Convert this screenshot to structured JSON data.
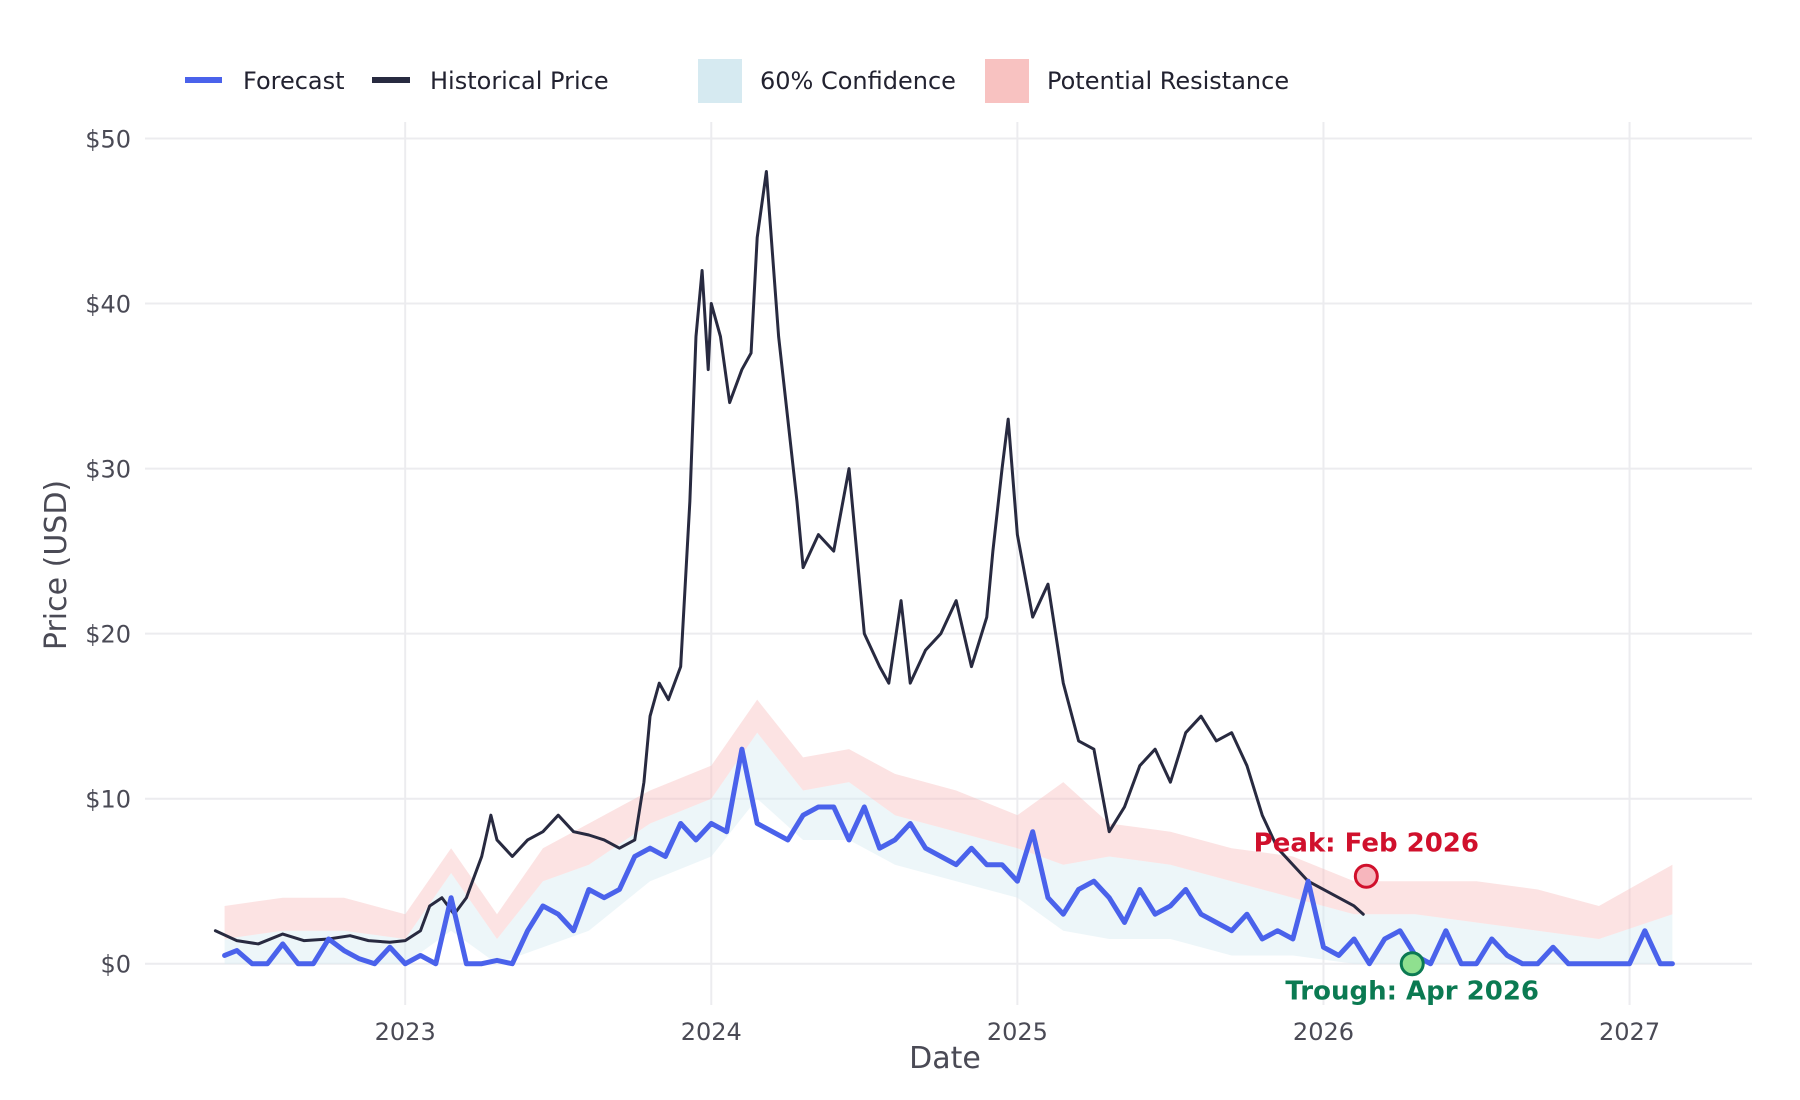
{
  "chart_data": {
    "type": "line",
    "title": "",
    "xlabel": "Date",
    "ylabel": "Price (USD)",
    "xlim": [
      2022.15,
      2027.4
    ],
    "ylim": [
      -2.5,
      51
    ],
    "x_ticks": [
      2023,
      2024,
      2025,
      2026,
      2027
    ],
    "x_tick_labels": [
      "2023",
      "2024",
      "2025",
      "2026",
      "2027"
    ],
    "y_ticks": [
      0,
      10,
      20,
      30,
      40,
      50
    ],
    "y_tick_labels": [
      "$0",
      "$10",
      "$20",
      "$30",
      "$40",
      "$50"
    ],
    "grid": true,
    "legend": {
      "placement": "top",
      "entries": [
        {
          "label": "Forecast",
          "kind": "line",
          "color": "#4a62eb"
        },
        {
          "label": "Historical Price",
          "kind": "line",
          "color": "#282a40"
        },
        {
          "label": "60% Confidence",
          "kind": "patch",
          "color": "#d6eaf1"
        },
        {
          "label": "Potential Resistance",
          "kind": "patch",
          "color": "#f8c2c1"
        }
      ]
    },
    "series": [
      {
        "name": "Historical Price",
        "color": "#282a40",
        "x": [
          2022.38,
          2022.45,
          2022.52,
          2022.6,
          2022.67,
          2022.75,
          2022.82,
          2022.88,
          2022.95,
          2023.0,
          2023.05,
          2023.08,
          2023.12,
          2023.16,
          2023.2,
          2023.25,
          2023.28,
          2023.3,
          2023.35,
          2023.4,
          2023.45,
          2023.5,
          2023.55,
          2023.6,
          2023.65,
          2023.7,
          2023.75,
          2023.78,
          2023.8,
          2023.83,
          2023.86,
          2023.9,
          2023.93,
          2023.95,
          2023.97,
          2023.99,
          2024.0,
          2024.03,
          2024.06,
          2024.1,
          2024.13,
          2024.15,
          2024.18,
          2024.22,
          2024.25,
          2024.28,
          2024.3,
          2024.35,
          2024.4,
          2024.45,
          2024.5,
          2024.55,
          2024.58,
          2024.62,
          2024.65,
          2024.7,
          2024.75,
          2024.8,
          2024.85,
          2024.9,
          2024.92,
          2024.95,
          2024.97,
          2025.0,
          2025.05,
          2025.1,
          2025.15,
          2025.2,
          2025.25,
          2025.3,
          2025.35,
          2025.4,
          2025.45,
          2025.5,
          2025.55,
          2025.6,
          2025.65,
          2025.7,
          2025.75,
          2025.8,
          2025.85,
          2025.9,
          2025.95,
          2026.0,
          2026.05,
          2026.1,
          2026.13
        ],
        "y": [
          2.0,
          1.4,
          1.2,
          1.8,
          1.4,
          1.5,
          1.7,
          1.4,
          1.3,
          1.4,
          2.0,
          3.5,
          4.0,
          3.0,
          4.0,
          6.5,
          9.0,
          7.5,
          6.5,
          7.5,
          8.0,
          9.0,
          8.0,
          7.8,
          7.5,
          7.0,
          7.5,
          11.0,
          15.0,
          17.0,
          16.0,
          18.0,
          28.0,
          38.0,
          42.0,
          36.0,
          40.0,
          38.0,
          34.0,
          36.0,
          37.0,
          44.0,
          48.0,
          38.0,
          33.0,
          28.0,
          24.0,
          26.0,
          25.0,
          30.0,
          20.0,
          18.0,
          17.0,
          22.0,
          17.0,
          19.0,
          20.0,
          22.0,
          18.0,
          21.0,
          25.0,
          30.0,
          33.0,
          26.0,
          21.0,
          23.0,
          17.0,
          13.5,
          13.0,
          8.0,
          9.5,
          12.0,
          13.0,
          11.0,
          14.0,
          15.0,
          13.5,
          14.0,
          12.0,
          9.0,
          7.0,
          6.0,
          5.0,
          4.5,
          4.0,
          3.5,
          3.0
        ]
      },
      {
        "name": "Forecast",
        "color": "#4a62eb",
        "x": [
          2022.41,
          2022.45,
          2022.5,
          2022.55,
          2022.6,
          2022.65,
          2022.7,
          2022.75,
          2022.8,
          2022.85,
          2022.9,
          2022.95,
          2023.0,
          2023.05,
          2023.1,
          2023.15,
          2023.2,
          2023.25,
          2023.3,
          2023.35,
          2023.4,
          2023.45,
          2023.5,
          2023.55,
          2023.6,
          2023.65,
          2023.7,
          2023.75,
          2023.8,
          2023.85,
          2023.9,
          2023.95,
          2024.0,
          2024.05,
          2024.1,
          2024.15,
          2024.2,
          2024.25,
          2024.3,
          2024.35,
          2024.4,
          2024.45,
          2024.5,
          2024.55,
          2024.6,
          2024.65,
          2024.7,
          2024.75,
          2024.8,
          2024.85,
          2024.9,
          2024.95,
          2025.0,
          2025.05,
          2025.1,
          2025.15,
          2025.2,
          2025.25,
          2025.3,
          2025.35,
          2025.4,
          2025.45,
          2025.5,
          2025.55,
          2025.6,
          2025.65,
          2025.7,
          2025.75,
          2025.8,
          2025.85,
          2025.9,
          2025.95,
          2026.0,
          2026.05,
          2026.1,
          2026.15,
          2026.2,
          2026.25,
          2026.3,
          2026.35,
          2026.4,
          2026.45,
          2026.5,
          2026.55,
          2026.6,
          2026.65,
          2026.7,
          2026.75,
          2026.8,
          2026.85,
          2026.9,
          2026.95,
          2027.0,
          2027.05,
          2027.1,
          2027.14
        ],
        "y": [
          0.5,
          0.8,
          0.0,
          0.0,
          1.2,
          0.0,
          0.0,
          1.5,
          0.8,
          0.3,
          0.0,
          1.0,
          0.0,
          0.5,
          0.0,
          4.0,
          0.0,
          0.0,
          0.2,
          0.0,
          2.0,
          3.5,
          3.0,
          2.0,
          4.5,
          4.0,
          4.5,
          6.5,
          7.0,
          6.5,
          8.5,
          7.5,
          8.5,
          8.0,
          13.0,
          8.5,
          8.0,
          7.5,
          9.0,
          9.5,
          9.5,
          7.5,
          9.5,
          7.0,
          7.5,
          8.5,
          7.0,
          6.5,
          6.0,
          7.0,
          6.0,
          6.0,
          5.0,
          8.0,
          4.0,
          3.0,
          4.5,
          5.0,
          4.0,
          2.5,
          4.5,
          3.0,
          3.5,
          4.5,
          3.0,
          2.5,
          2.0,
          3.0,
          1.5,
          2.0,
          1.5,
          5.0,
          1.0,
          0.5,
          1.5,
          0.0,
          1.5,
          2.0,
          0.5,
          0.0,
          2.0,
          0.0,
          0.0,
          1.5,
          0.5,
          0.0,
          0.0,
          1.0,
          0.0,
          0.0,
          0.0,
          0.0,
          0.0,
          2.0,
          0.0,
          0.0
        ]
      }
    ],
    "bands": [
      {
        "name": "60% Confidence",
        "color": "#d6eaf1",
        "x": [
          2022.41,
          2022.6,
          2022.8,
          2023.0,
          2023.15,
          2023.3,
          2023.45,
          2023.6,
          2023.8,
          2024.0,
          2024.15,
          2024.3,
          2024.45,
          2024.6,
          2024.8,
          2025.0,
          2025.15,
          2025.3,
          2025.5,
          2025.7,
          2025.9,
          2026.1,
          2026.3,
          2026.5,
          2026.7,
          2026.9,
          2027.14
        ],
        "y_low": [
          0.0,
          0.0,
          0.0,
          0.0,
          2.0,
          0.0,
          1.0,
          2.0,
          5.0,
          6.5,
          10.0,
          7.5,
          7.5,
          6.0,
          5.0,
          4.0,
          2.0,
          1.5,
          1.5,
          0.5,
          0.5,
          0.0,
          0.0,
          0.0,
          0.0,
          0.0,
          0.0
        ],
        "y_high": [
          1.5,
          2.0,
          2.0,
          1.5,
          5.5,
          1.5,
          5.0,
          6.0,
          8.5,
          10.0,
          14.0,
          10.5,
          11.0,
          9.0,
          8.0,
          7.0,
          6.0,
          6.5,
          6.0,
          5.0,
          4.0,
          3.0,
          3.0,
          2.5,
          2.0,
          1.5,
          3.0
        ]
      },
      {
        "name": "Potential Resistance",
        "color": "#f8c2c1",
        "x": [
          2022.41,
          2022.6,
          2022.8,
          2023.0,
          2023.15,
          2023.3,
          2023.45,
          2023.6,
          2023.8,
          2024.0,
          2024.15,
          2024.3,
          2024.45,
          2024.6,
          2024.8,
          2025.0,
          2025.15,
          2025.3,
          2025.5,
          2025.7,
          2025.9,
          2026.1,
          2026.3,
          2026.5,
          2026.7,
          2026.9,
          2027.14
        ],
        "y_low": [
          1.5,
          2.0,
          2.0,
          1.5,
          5.5,
          1.5,
          5.0,
          6.0,
          8.5,
          10.0,
          14.0,
          10.5,
          11.0,
          9.0,
          8.0,
          7.0,
          6.0,
          6.5,
          6.0,
          5.0,
          4.0,
          3.0,
          3.0,
          2.5,
          2.0,
          1.5,
          3.0
        ],
        "y_high": [
          3.5,
          4.0,
          4.0,
          3.0,
          7.0,
          3.0,
          7.0,
          8.5,
          10.5,
          12.0,
          16.0,
          12.5,
          13.0,
          11.5,
          10.5,
          9.0,
          11.0,
          8.5,
          8.0,
          7.0,
          6.5,
          5.0,
          5.0,
          5.0,
          4.5,
          3.5,
          6.0
        ]
      }
    ],
    "annotations": [
      {
        "label": "Peak: Feb 2026",
        "x": 2026.14,
        "y": 5.3,
        "color": "#d0102c",
        "marker_fill": "#f7b6bd",
        "position": "above"
      },
      {
        "label": "Trough: Apr 2026",
        "x": 2026.29,
        "y": 0.0,
        "color": "#0b7a52",
        "marker_fill": "#8fe08f",
        "position": "below"
      }
    ]
  }
}
